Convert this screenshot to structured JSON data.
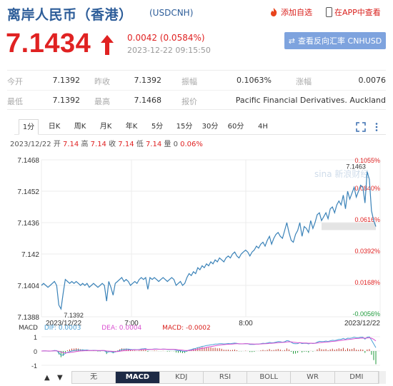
{
  "header": {
    "title": "离岸人民币（香港）",
    "code": "(USDCNH)",
    "add_watch": "添加自选",
    "app_view": "在APP中查看"
  },
  "quote_main": {
    "price": "7.1434",
    "change": "0.0042 (0.0584%)",
    "time": "2023-12-22 09:15:50",
    "reverse_button": "查看反向汇率 CNHUSD"
  },
  "stats": [
    {
      "label": "今开",
      "value": "7.1392"
    },
    {
      "label": "昨收",
      "value": "7.1392"
    },
    {
      "label": "振幅",
      "value": "0.1063%"
    },
    {
      "label": "涨幅",
      "value": "0.0076"
    },
    {
      "label": "最低",
      "value": "7.1392"
    },
    {
      "label": "最高",
      "value": "7.1468"
    },
    {
      "label": "报价",
      "value": "Pacific Financial Derivatives. Auckland"
    }
  ],
  "period_tabs": [
    "1分",
    "日K",
    "周K",
    "月K",
    "年K",
    "5分",
    "15分",
    "30分",
    "60分",
    "4H"
  ],
  "info": {
    "date": "2023/12/22",
    "open_label": "开",
    "open": "7.14",
    "high_label": "高",
    "high": "7.14",
    "close_label": "收",
    "close": "7.14",
    "low_label": "低",
    "low": "7.14",
    "vol_label": "量",
    "vol": "0",
    "pct": "0.06%"
  },
  "watermark": "sina 新浪财经",
  "macd": {
    "label": "MACD",
    "dif_label": "DIF:",
    "dif": "0.0003",
    "dea_label": "DEA:",
    "dea": "0.0004",
    "macd_label": "MACD:",
    "macd": "-0.0002",
    "axis": [
      "1",
      "0",
      "-1"
    ]
  },
  "indicator_tabs": [
    "无",
    "MACD",
    "KDJ",
    "RSI",
    "BOLL",
    "WR",
    "DMI"
  ],
  "colors": {
    "price_up": "#e02222",
    "line": "#3a82b8",
    "brand": "#2d5d99",
    "button": "#7ea3de",
    "dif": "#4aa0d6",
    "dea": "#d94fd0"
  },
  "chart_data": {
    "type": "line",
    "ylim": [
      7.1388,
      7.1468
    ],
    "y_ticks_left": [
      "7.1468",
      "7.1452",
      "7.1436",
      "7.142",
      "7.1404",
      "7.1388"
    ],
    "y_ticks_right": [
      "0.1055%",
      "0.0840%",
      "0.0616%",
      "0.0392%",
      "0.0168%",
      "-0.0056%"
    ],
    "x_ticks": [
      "2023/12/22",
      "7:00",
      "8:00",
      "2023/12/22"
    ],
    "annotations": {
      "high": "7.1463",
      "low": "7.1392"
    },
    "series": [
      {
        "values": [
          7.1404,
          7.1405,
          7.1404,
          7.1403,
          7.1404,
          7.1405,
          7.1406,
          7.1404,
          7.1394,
          7.1392,
          7.14,
          7.1407,
          7.1406,
          7.1405,
          7.1406,
          7.1405,
          7.1406,
          7.1405,
          7.1404,
          7.1405,
          7.1404,
          7.1405,
          7.1403,
          7.1404,
          7.1405,
          7.1404,
          7.1403,
          7.1404,
          7.1405,
          7.1404,
          7.1396,
          7.1406,
          7.1403,
          7.1399,
          7.1405,
          7.1406,
          7.1407,
          7.1408,
          7.1406,
          7.1407,
          7.1406,
          7.1404,
          7.1405,
          7.1406,
          7.1405,
          7.1407,
          7.1408,
          7.1407,
          7.1408,
          7.1402,
          7.1408,
          7.1407,
          7.1408,
          7.1407,
          7.1406,
          7.1407,
          7.1408,
          7.1407,
          7.1406,
          7.1407,
          7.1408,
          7.1407,
          7.1404,
          7.1405,
          7.1406,
          7.1404,
          7.1405,
          7.1408,
          7.141,
          7.1409,
          7.1411,
          7.141,
          7.1413,
          7.1412,
          7.1414,
          7.1413,
          7.1415,
          7.1414,
          7.1416,
          7.1415,
          7.1417,
          7.1416,
          7.1418,
          7.1417,
          7.1416,
          7.1418,
          7.1419,
          7.1418,
          7.142,
          7.1421,
          7.1419,
          7.1418,
          7.142,
          7.1421,
          7.1422,
          7.1421,
          7.1419,
          7.1421,
          7.1422,
          7.1424,
          7.1423,
          7.1425,
          7.1426,
          7.1424,
          7.1427,
          7.1429,
          7.1425,
          7.1428,
          7.143,
          7.1431,
          7.1429,
          7.1428,
          7.1432,
          7.1436,
          7.1431,
          7.1427,
          7.1426,
          7.143,
          7.1432,
          7.1436,
          7.1429,
          7.1434,
          7.1433,
          7.1431,
          7.1437,
          7.1433,
          7.1436,
          7.144,
          7.1441,
          7.1437,
          7.1439,
          7.1441,
          7.1438,
          7.1443,
          7.1444,
          7.1441,
          7.1445,
          7.1447,
          7.1445,
          7.145,
          7.1443,
          7.1452,
          7.1448,
          7.1451,
          7.1454,
          7.1449,
          7.1452,
          7.1455,
          7.1454,
          7.1446,
          7.1462,
          7.1458,
          7.1442,
          7.1437,
          7.1434
        ]
      }
    ]
  }
}
